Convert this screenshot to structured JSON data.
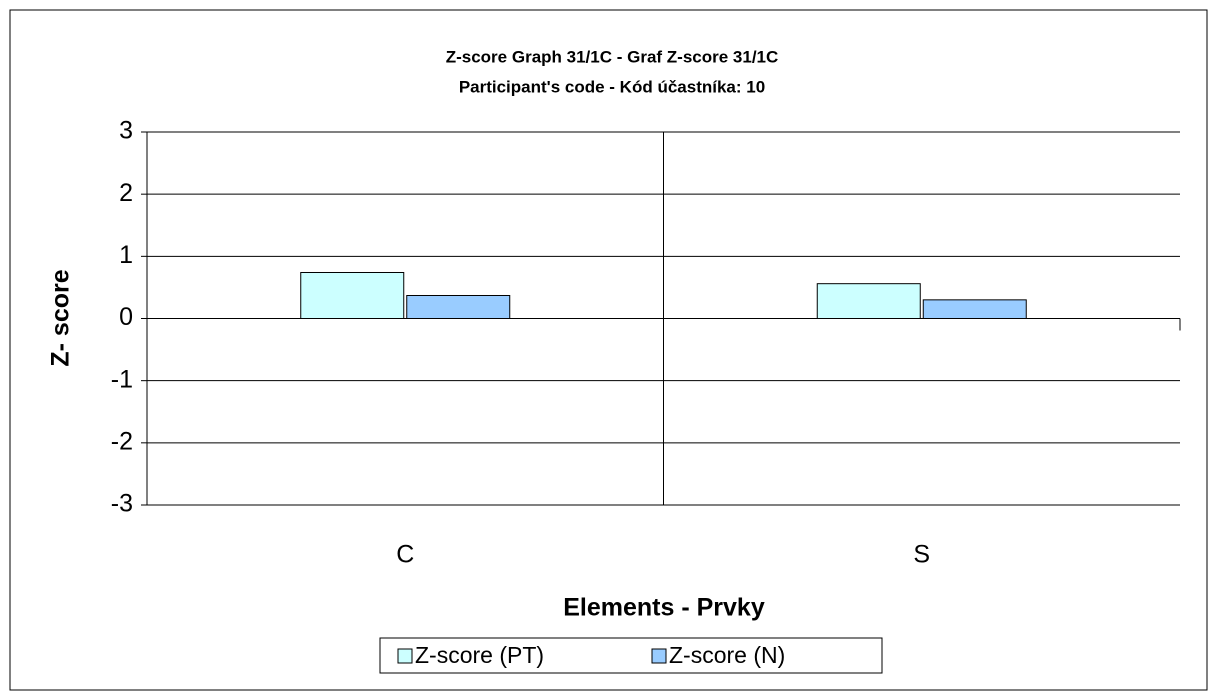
{
  "chart_data": {
    "type": "bar",
    "title": "Z-score Graph 31/1C - Graf Z-score 31/1C",
    "subtitle": "Participant's code - Kód účastníka:  10",
    "x_label": "Elements - Prvky",
    "y_label": "Z- score",
    "categories": [
      "C",
      "S"
    ],
    "series": [
      {
        "name": "Z-score (PT)",
        "color": "#ccffff",
        "values": [
          0.74,
          0.56
        ]
      },
      {
        "name": "Z-score (N)",
        "color": "#99ccff",
        "values": [
          0.37,
          0.3
        ]
      }
    ],
    "ylim": [
      -3,
      3
    ],
    "yticks": [
      -3,
      -2,
      -1,
      0,
      1,
      2,
      3
    ],
    "grid": true,
    "legend": "bottom"
  }
}
